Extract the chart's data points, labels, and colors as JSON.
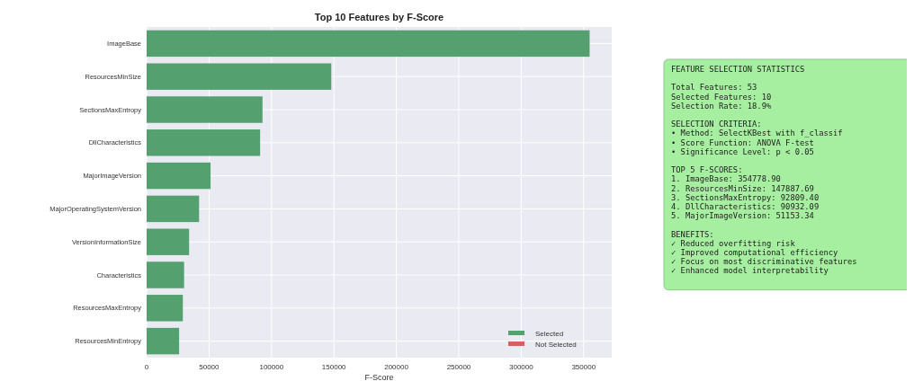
{
  "chart_data": {
    "type": "bar",
    "orientation": "horizontal",
    "title": "Top 10 Features by F-Score",
    "xlabel": "F-Score",
    "categories": [
      "ImageBase",
      "ResourcesMinSize",
      "SectionsMaxEntropy",
      "DllCharacteristics",
      "MajorImageVersion",
      "MajorOperatingSystemVersion",
      "VersionInformationSize",
      "Characteristics",
      "ResourcesMaxEntropy",
      "ResourcesMinEntropy"
    ],
    "series": [
      {
        "name": "Selected",
        "color": "#55a06f",
        "values": [
          354800,
          147900,
          92800,
          90900,
          51200,
          42000,
          34000,
          30000,
          29000,
          26000
        ]
      },
      {
        "name": "Not Selected",
        "color": "#d65f5f",
        "values": [
          null,
          null,
          null,
          null,
          null,
          null,
          null,
          null,
          null,
          null
        ]
      }
    ],
    "xlim": [
      0,
      372500
    ],
    "xticks": [
      0,
      50000,
      100000,
      150000,
      200000,
      250000,
      300000,
      350000
    ],
    "grid": true,
    "legend": "bottom right",
    "annotations": [
      "FEATURE SELECTION STATISTICS",
      "Total Features: 53\nSelected Features: 10\nSelection Rate: 18.9%",
      "SELECTION CRITERIA:\n• Method: SelectKBest with f_classif\n• Score Function: ANOVA F-test\n• Significance Level: p < 0.05",
      "TOP 5 F-SCORES:\n1. ImageBase: 354778.90\n2. ResourcesMinSize: 147887.69\n3. SectionsMaxEntropy: 92809.40\n4. DllCharacteristics: 90932.09\n5. MajorImageVersion: 51153.34",
      "BENEFITS:\n✓ Reduced overfitting risk\n✓ Improved computational efficiency\n✓ Focus on most discriminative features\n✓ Enhanced model interpretability"
    ]
  }
}
